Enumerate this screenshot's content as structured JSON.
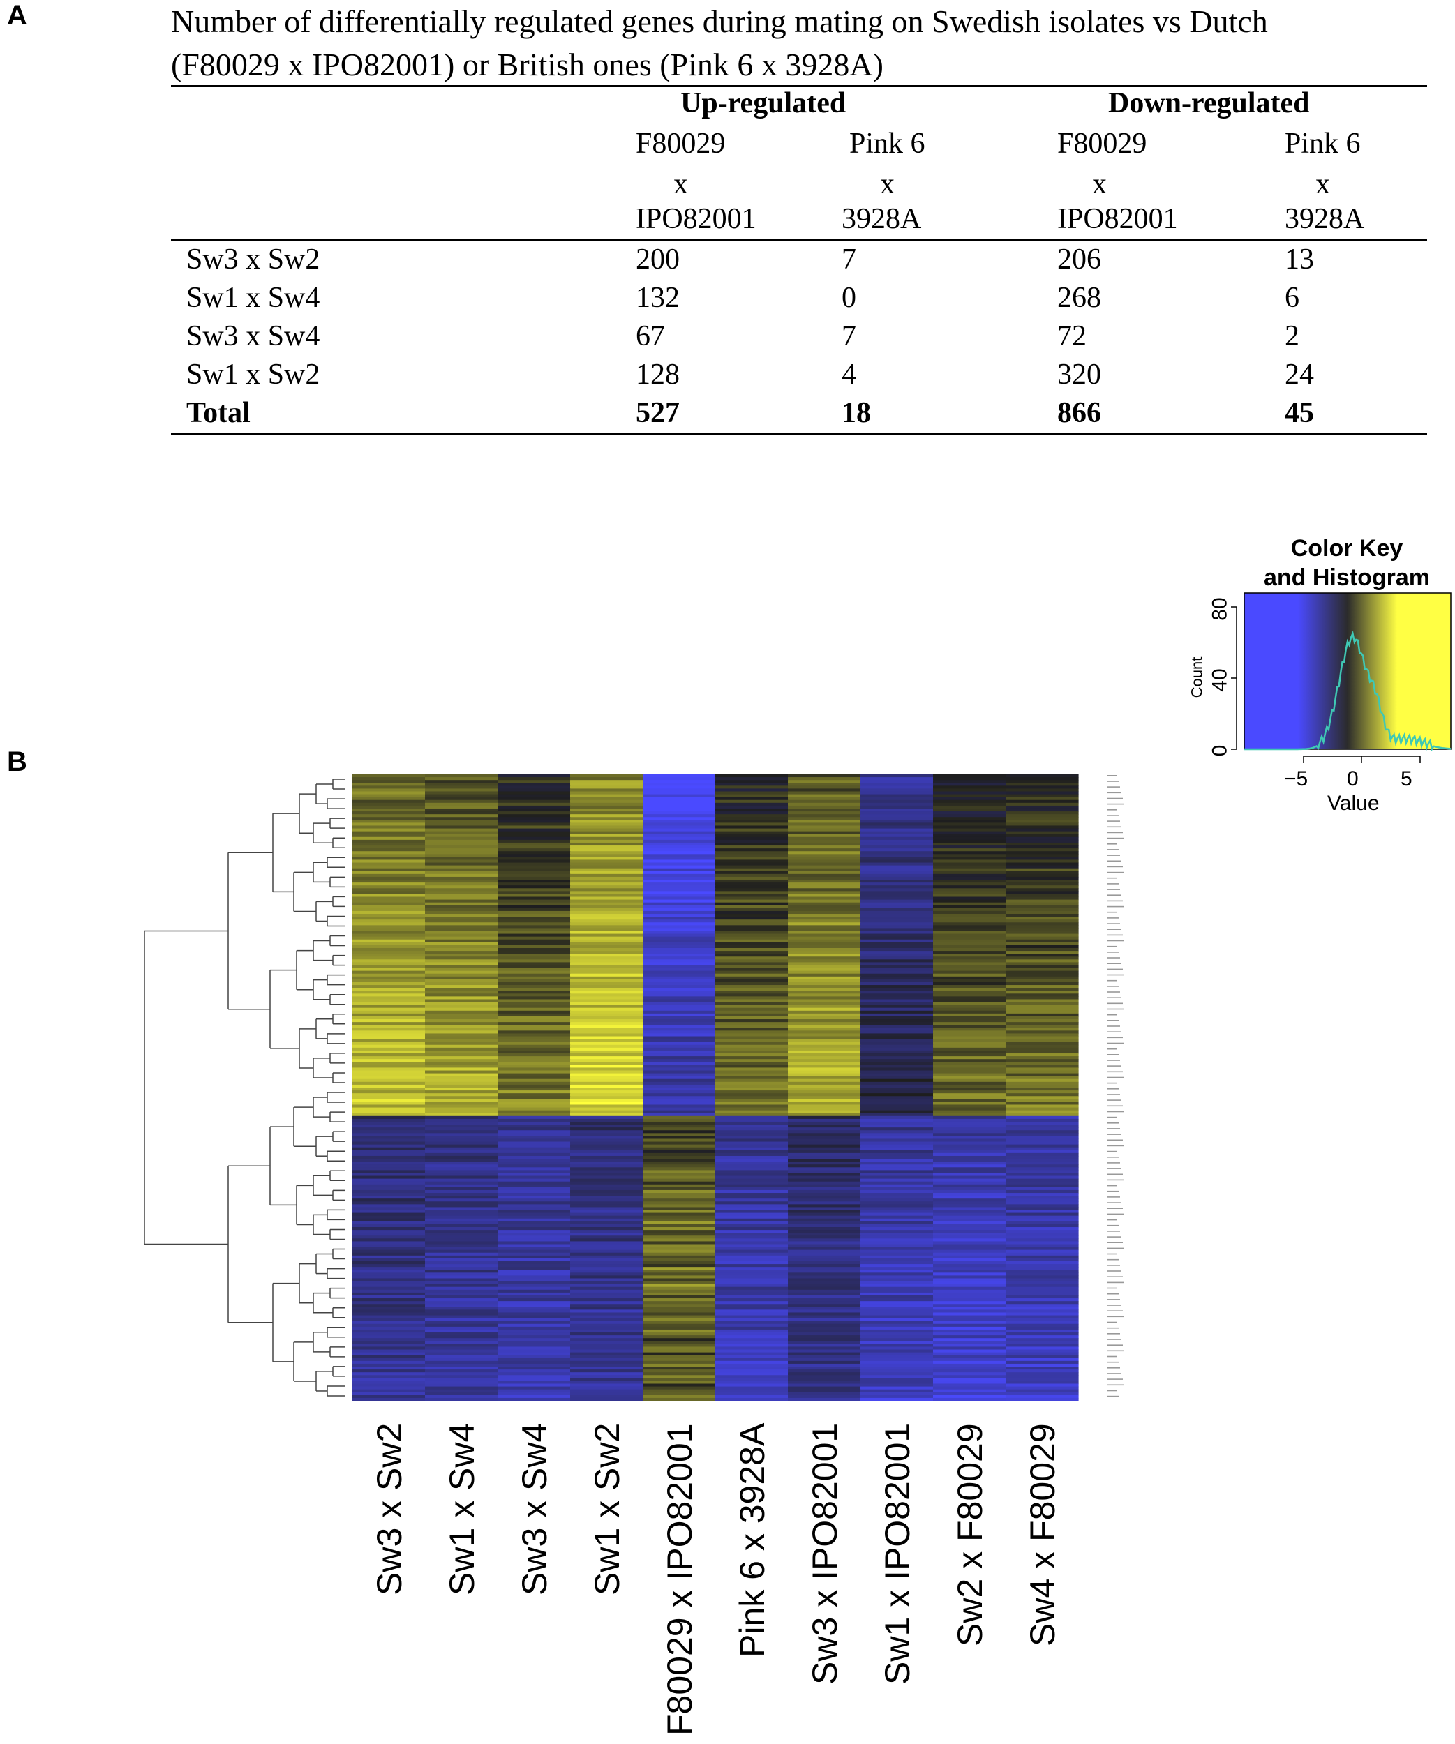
{
  "panel_a_letter": "A",
  "panel_b_letter": "B",
  "caption": {
    "line1": "Number of differentially regulated genes during mating on Swedish isolates vs Dutch",
    "line2": "(F80029 x IPO82001) or British ones (Pink 6 x 3928A)"
  },
  "table": {
    "group_headers": [
      "Up-regulated",
      "Down-regulated"
    ],
    "subheaders": [
      {
        "l1": "F80029",
        "l2": "x",
        "l3": "IPO82001"
      },
      {
        "l1": "Pink 6",
        "l2": "x",
        "l3": "3928A"
      },
      {
        "l1": "F80029",
        "l2": "x",
        "l3": "IPO82001"
      },
      {
        "l1": "Pink 6",
        "l2": "x",
        "l3": "3928A"
      }
    ],
    "rows": [
      {
        "label": "Sw3 x Sw2",
        "v": [
          "200",
          "7",
          "206",
          "13"
        ]
      },
      {
        "label": "Sw1 x Sw4",
        "v": [
          "132",
          "0",
          "268",
          "6"
        ]
      },
      {
        "label": "Sw3 x Sw4",
        "v": [
          "67",
          "7",
          "72",
          "2"
        ]
      },
      {
        "label": "Sw1 x Sw2",
        "v": [
          "128",
          "4",
          "320",
          "24"
        ]
      }
    ],
    "total": {
      "label": "Total",
      "v": [
        "527",
        "18",
        "866",
        "45"
      ]
    }
  },
  "color_key": {
    "title_line1": "Color Key",
    "title_line2": "and Histogram",
    "ylabel": "Count",
    "xlabel": "Value",
    "yticks": [
      "0",
      "40",
      "80"
    ],
    "xticks": [
      "−5",
      "0",
      "5"
    ],
    "colors": {
      "low": "#4a4aff",
      "mid": "#2b2b2b",
      "high": "#ffff44",
      "hist": "#3fc8b4"
    }
  },
  "chart_data": {
    "type": "heatmap",
    "title": "",
    "columns": [
      "Sw3 x Sw2",
      "Sw1 x Sw4",
      "Sw3 x Sw4",
      "Sw1  x Sw2",
      "F80029 x IPO82001",
      "Pink 6 x 3928A",
      "Sw3  x IPO82001",
      "Sw1 x IPO82001",
      "Sw2 x F80029",
      "Sw4 x F80029"
    ],
    "value_range": [
      -8,
      8
    ],
    "row_blocks": [
      {
        "name": "upper cluster",
        "mean": [
          3.2,
          2.8,
          1.4,
          4.0,
          -4.5,
          1.2,
          2.8,
          -2.0,
          1.0,
          1.2
        ]
      },
      {
        "name": "lower cluster",
        "mean": [
          -2.0,
          -2.4,
          -2.8,
          -2.2,
          0.8,
          -3.0,
          -1.8,
          -3.2,
          -3.6,
          -3.2
        ]
      }
    ]
  }
}
